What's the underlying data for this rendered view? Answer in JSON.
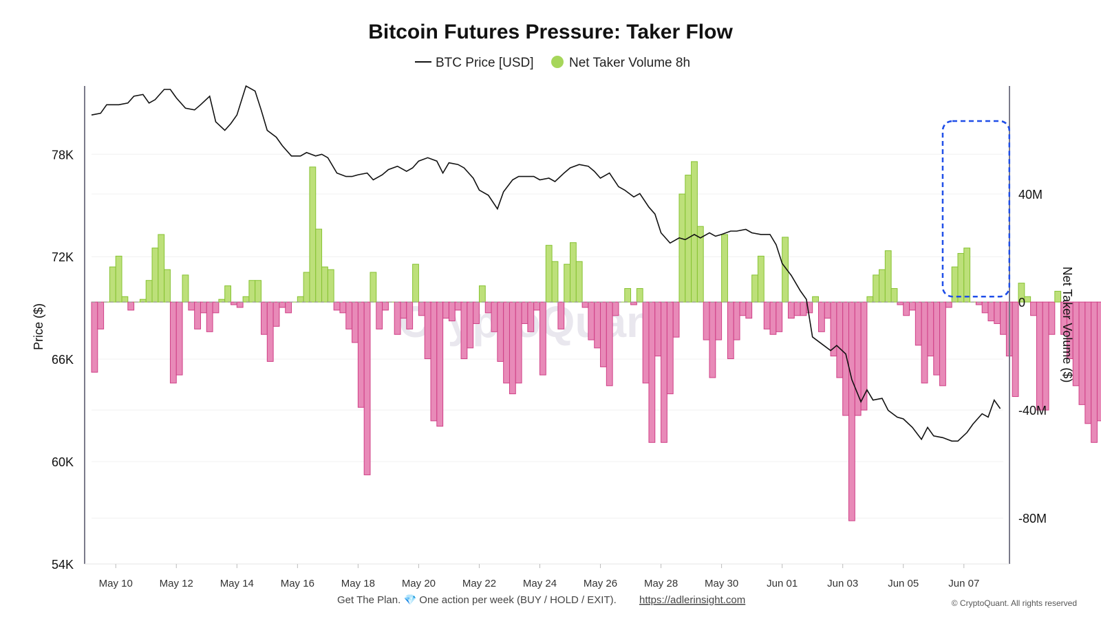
{
  "colors": {
    "price_line": "#111111",
    "positive_fill": "#bde07a",
    "positive_stroke": "#86c232",
    "negative_fill": "#e88ab8",
    "negative_stroke": "#cf3f86",
    "highlight_box": "#1f4ee8",
    "legend_dot": "#a6d65a"
  },
  "chart_data": {
    "type": "bar",
    "title": "Bitcoin Futures Pressure: Taker Flow",
    "legend": [
      {
        "name": "BTC Price [USD]",
        "marker": "line"
      },
      {
        "name": "Net Taker Volume 8h",
        "marker": "dot"
      }
    ],
    "legend_position": "top-center",
    "y_left": {
      "label": "Price ($)",
      "ticks": [
        "78K",
        "72K",
        "66K",
        "60K",
        "54K"
      ],
      "ylim": [
        54000,
        82000
      ]
    },
    "y_right": {
      "label": "Net Taker Volume ($)",
      "ticks": [
        "40M",
        "0",
        "-40M",
        "-80M"
      ],
      "ylim": [
        -97000000,
        80000000
      ]
    },
    "x_ticks": [
      "May 10",
      "May 12",
      "May 14",
      "May 16",
      "May 18",
      "May 20",
      "May 22",
      "May 24",
      "May 26",
      "May 28",
      "May 30",
      "Jun 01",
      "Jun 03",
      "Jun 05",
      "Jun 07"
    ],
    "x_range_days": [
      -0.8,
      29.3
    ],
    "watermark": "CryptoQuant",
    "series": [
      {
        "name": "BTC Price [USD]",
        "type": "line",
        "x": [
          -0.8,
          -0.5,
          -0.3,
          -0.1,
          0.1,
          0.4,
          0.6,
          0.9,
          1.1,
          1.3,
          1.6,
          1.8,
          2.0,
          2.3,
          2.6,
          2.8,
          3.1,
          3.3,
          3.6,
          3.8,
          4.0,
          4.3,
          4.6,
          4.8,
          5.0,
          5.3,
          5.5,
          5.8,
          6.1,
          6.3,
          6.6,
          6.8,
          7.0,
          7.3,
          7.6,
          7.8,
          8.0,
          8.3,
          8.5,
          8.8,
          9.0,
          9.3,
          9.6,
          9.8,
          10.0,
          10.3,
          10.6,
          10.8,
          11.0,
          11.3,
          11.5,
          11.8,
          12.0,
          12.3,
          12.6,
          12.8,
          13.1,
          13.3,
          13.6,
          13.8,
          14.0,
          14.3,
          14.5,
          14.8,
          15.0,
          15.3,
          15.6,
          15.8,
          16.0,
          16.3,
          16.6,
          16.8,
          17.1,
          17.3,
          17.6,
          17.8,
          18.0,
          18.3,
          18.6,
          18.8,
          19.1,
          19.3,
          19.6,
          19.8,
          20.0,
          20.3,
          20.5,
          20.8,
          21.0,
          21.3,
          21.6,
          21.8,
          22.0,
          22.3,
          22.6,
          22.8,
          23.0,
          23.3,
          23.6,
          23.8,
          24.1,
          24.3,
          24.6,
          24.8,
          25.0,
          25.3,
          25.5,
          25.8,
          26.0,
          26.3,
          26.6,
          26.8,
          27.0,
          27.3,
          27.6,
          27.8,
          28.1,
          28.3,
          28.6,
          28.8,
          29.0,
          29.2
        ],
        "values": [
          80300,
          80400,
          80900,
          80900,
          80900,
          81000,
          81400,
          81500,
          81000,
          81200,
          81800,
          81800,
          81300,
          80700,
          80600,
          80900,
          81400,
          79900,
          79400,
          79800,
          80300,
          82000,
          81700,
          80600,
          79400,
          79000,
          78500,
          77900,
          77900,
          78100,
          77900,
          78000,
          77800,
          76900,
          76700,
          76700,
          76800,
          76900,
          76500,
          76800,
          77100,
          77300,
          77000,
          77200,
          77600,
          77800,
          77600,
          76900,
          77500,
          77400,
          77200,
          76600,
          75900,
          75600,
          74800,
          75800,
          76500,
          76700,
          76700,
          76700,
          76500,
          76600,
          76400,
          76900,
          77200,
          77400,
          77300,
          77000,
          76600,
          76900,
          76100,
          75900,
          75500,
          75700,
          74900,
          74500,
          73400,
          72800,
          73100,
          73000,
          73300,
          73100,
          73400,
          73200,
          73300,
          73500,
          73500,
          73600,
          73400,
          73300,
          73300,
          72700,
          71600,
          70900,
          70000,
          69500,
          67300,
          66900,
          66500,
          66800,
          66300,
          64800,
          63500,
          64200,
          63600,
          63700,
          63000,
          62600,
          62500,
          62000,
          61300,
          62000,
          61500,
          61400,
          61200,
          61200,
          61700,
          62200,
          62800,
          62600,
          63600,
          63100
        ]
      },
      {
        "name": "Net Taker Volume 8h",
        "type": "bar",
        "x_start_days": -0.8,
        "step_days": 0.2,
        "values": [
          -26,
          -10,
          0,
          13,
          17,
          2,
          -3,
          0,
          1,
          8,
          20,
          25,
          12,
          -30,
          -27,
          10,
          -3,
          -10,
          -4,
          -11,
          -4,
          1,
          6,
          -1,
          -2,
          2,
          8,
          8,
          -12,
          -22,
          -9,
          -2,
          -4,
          0,
          2,
          11,
          50,
          27,
          13,
          12,
          -3,
          -4,
          -10,
          -15,
          -39,
          -64,
          11,
          -10,
          -3,
          0,
          -12,
          -6,
          -10,
          14,
          -5,
          -21,
          -44,
          -46,
          -6,
          -7,
          -3,
          -21,
          -17,
          -8,
          6,
          -4,
          -11,
          -22,
          -30,
          -34,
          -30,
          -8,
          -11,
          -3,
          -27,
          21,
          15,
          -10,
          14,
          22,
          15,
          -2,
          -14,
          -17,
          -24,
          -31,
          -5,
          0,
          5,
          -1,
          5,
          -30,
          -52,
          -20,
          -52,
          -34,
          -13,
          40,
          47,
          52,
          28,
          -14,
          -28,
          -14,
          25,
          -21,
          -14,
          -5,
          -6,
          10,
          17,
          -10,
          -12,
          -11,
          24,
          -6,
          -5,
          -5,
          -4,
          2,
          -11,
          -6,
          -20,
          -28,
          -42,
          -81,
          -42,
          -40,
          2,
          10,
          12,
          19,
          5,
          -1,
          -5,
          -3,
          -16,
          -30,
          -20,
          -27,
          -31,
          -2,
          13,
          18,
          20,
          0,
          -1,
          -4,
          -7,
          -8,
          -12,
          -20,
          -35,
          7,
          2,
          -5,
          -40,
          -40,
          -12,
          4,
          -12,
          -21,
          -31,
          -38,
          -45,
          -52,
          -44,
          -40,
          -16,
          -23,
          -39,
          -44,
          -60,
          -49,
          -30,
          -81,
          -49,
          -11,
          -2,
          -3,
          -12,
          -54,
          -36,
          -66,
          -64,
          -37,
          20,
          -1,
          -1,
          -1,
          -1,
          -1,
          -7,
          23,
          31,
          -9,
          -6,
          -4,
          -4,
          -13,
          -6,
          -11,
          -19,
          -28,
          -35,
          -85,
          -44,
          2,
          -8,
          -2,
          -4,
          -15,
          -14,
          -1,
          -6,
          0,
          2,
          25,
          40,
          61,
          30,
          -10,
          -28,
          -1,
          -1,
          14,
          36,
          -4
        ]
      }
    ],
    "highlight_box": {
      "x_from_days": 27.3,
      "x_to_days": 29.5,
      "y_from": 2000000,
      "y_to": 67000000
    }
  },
  "footer": {
    "text": "Get The Plan. 💎 One action per week (BUY / HOLD / EXIT).",
    "link": "https://adlerinsight.com",
    "copyright": "© CryptoQuant. All rights reserved"
  }
}
